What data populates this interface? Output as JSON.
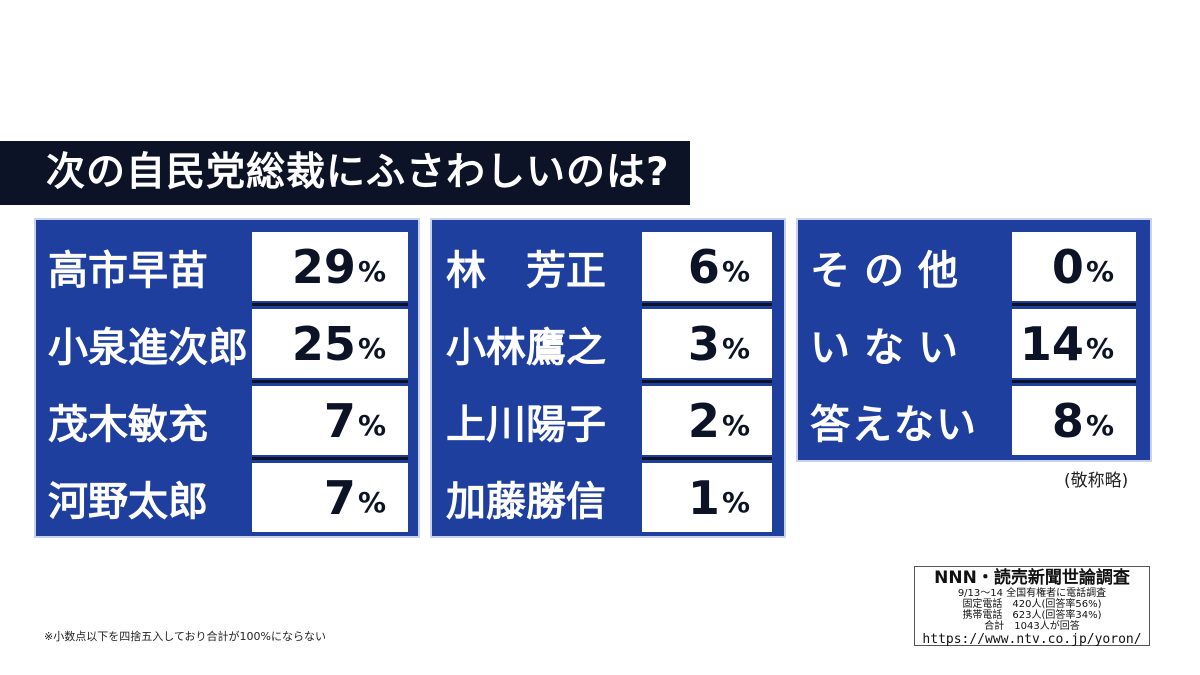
{
  "title": "次の自民党総裁にふさわしいのは?",
  "chart_data": {
    "type": "table",
    "columns": [
      {
        "rows": [
          {
            "name": "高市早苗",
            "value": 29
          },
          {
            "name": "小泉進次郎",
            "value": 25
          },
          {
            "name": "茂木敏充",
            "value": 7
          },
          {
            "name": "河野太郎",
            "value": 7
          }
        ]
      },
      {
        "rows": [
          {
            "name": "林　芳正",
            "value": 6
          },
          {
            "name": "小林鷹之",
            "value": 3
          },
          {
            "name": "上川陽子",
            "value": 2
          },
          {
            "name": "加藤勝信",
            "value": 1
          }
        ]
      },
      {
        "rows": [
          {
            "name": "その他",
            "value": 0
          },
          {
            "name": "いない",
            "value": 14
          },
          {
            "name": "答えない",
            "value": 8
          }
        ]
      }
    ],
    "unit": "%"
  },
  "honorific_note": "(敬称略)",
  "footnote": "※小数点以下を四捨五入しており合計が100%にならない",
  "source": {
    "title": "NNN・読売新聞世論調査",
    "lines": [
      "9/13〜14 全国有権者に電話調査",
      "固定電話　420人(回答率56%)",
      "携帯電話　623人(回答率34%)",
      "合計　1043人が回答"
    ],
    "url": "https://www.ntv.co.jp/yoron/"
  },
  "colors": {
    "panel_blue": "#1f3f9f",
    "title_bar": "#0d1326",
    "value_text": "#0d1326",
    "name_text": "#ffffff"
  }
}
